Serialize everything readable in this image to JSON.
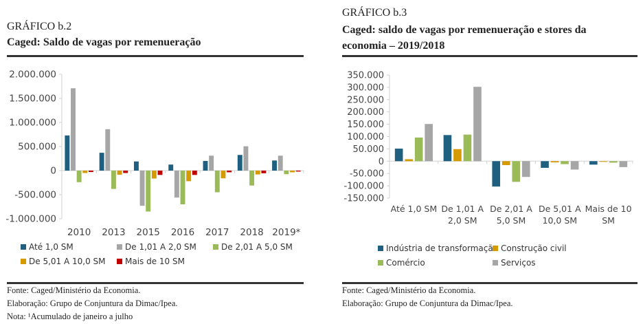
{
  "left": {
    "label": "GRÁFICO b.2",
    "title": "Caged: Saldo de vagas por remenueração",
    "notes": [
      "Fonte: Caged/Ministério da Economia.",
      "Elaboração: Grupo de Conjuntura da Dimac/Ipea.",
      "Nota: ¹Acumulado de janeiro a julho"
    ]
  },
  "right": {
    "label": "GRÁFICO b.3",
    "title_line1": "Caged: saldo de vagas por remenueração e stores da",
    "title_line2": "economia – 2019/2018",
    "notes": [
      "Fonte: Caged/Ministério da Economia.",
      "Elaboração: Grupo de Conjuntura da Dimac/Ipea."
    ]
  },
  "chart_data": [
    {
      "type": "bar",
      "title": "Caged: Saldo de vagas por remenueração",
      "categories": [
        "2010",
        "2013",
        "2015",
        "2016",
        "2017",
        "2018",
        "2019*"
      ],
      "ylim": [
        -1000000,
        2000000
      ],
      "yticks": [
        2000000,
        1500000,
        1000000,
        500000,
        0,
        -500000,
        -1000000
      ],
      "ytick_labels": [
        "2.000.000",
        "1.500.000",
        "1.000.000",
        "500.000",
        "0",
        "-500.000",
        "-1.000.000"
      ],
      "grid": false,
      "legend_position": "bottom",
      "series": [
        {
          "name": "Até 1,0 SM",
          "color": "#1f5f7f",
          "values": [
            730000,
            370000,
            190000,
            125000,
            200000,
            325000,
            210000
          ]
        },
        {
          "name": "De 1,01 A 2,0 SM",
          "color": "#a6a6a6",
          "values": [
            1710000,
            860000,
            -730000,
            -560000,
            310000,
            505000,
            310000
          ]
        },
        {
          "name": "De 2,01 A 5,0 SM",
          "color": "#9bbb59",
          "values": [
            -240000,
            -380000,
            -850000,
            -700000,
            -450000,
            -310000,
            -75000
          ]
        },
        {
          "name": "De 5,01 A 10,0 SM",
          "color": "#d49a00",
          "values": [
            -50000,
            -85000,
            -165000,
            -220000,
            -160000,
            -80000,
            -35000
          ]
        },
        {
          "name": "Mais de 10 SM",
          "color": "#c00000",
          "values": [
            -30000,
            -50000,
            -90000,
            -90000,
            -35000,
            -55000,
            -20000
          ]
        }
      ]
    },
    {
      "type": "bar",
      "title": "Caged: saldo de vagas por remenueração e stores da economia – 2019/2018",
      "categories": [
        [
          "Até 1,0 SM"
        ],
        [
          "De 1,01 A",
          "2,0 SM"
        ],
        [
          "De 2,01 A",
          "5,0 SM"
        ],
        [
          "De 5,01 A",
          "10,0 SM"
        ],
        [
          "Mais de 10",
          "SM"
        ]
      ],
      "ylim": [
        -150000,
        350000
      ],
      "yticks": [
        350000,
        300000,
        250000,
        200000,
        150000,
        100000,
        50000,
        0,
        -50000,
        -100000,
        -150000
      ],
      "ytick_labels": [
        "350.000",
        "300.000",
        "250.000",
        "200.000",
        "150.000",
        "100.000",
        "50.000",
        "0",
        "-50.000",
        "-100.000",
        "-150.000"
      ],
      "grid": false,
      "legend_position": "bottom",
      "series": [
        {
          "name": "Indústria de transformação",
          "color": "#1f5f7f",
          "values": [
            51000,
            106000,
            -103000,
            -27000,
            -14000
          ]
        },
        {
          "name": "Construção civil",
          "color": "#d49a00",
          "values": [
            8000,
            49000,
            -16000,
            -5000,
            -2000
          ]
        },
        {
          "name": "Comércio",
          "color": "#9bbb59",
          "values": [
            96000,
            108000,
            -84000,
            -12000,
            -6000
          ]
        },
        {
          "name": "Serviços",
          "color": "#a6a6a6",
          "values": [
            151000,
            302000,
            -64000,
            -34000,
            -24000
          ]
        }
      ]
    }
  ]
}
